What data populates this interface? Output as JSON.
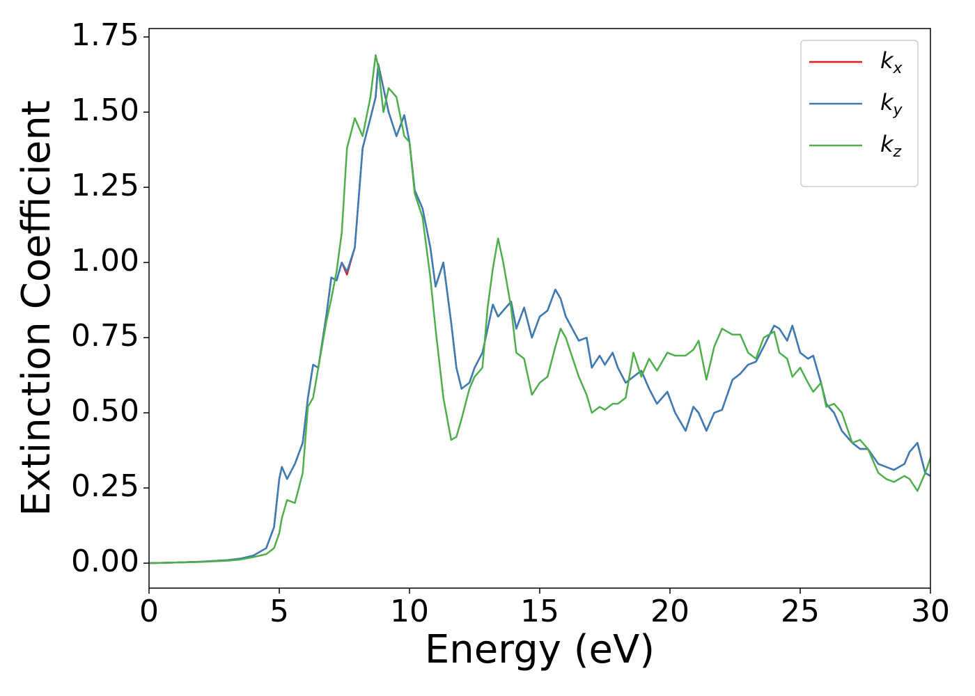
{
  "chart_data": {
    "type": "line",
    "xlabel": "Energy (eV)",
    "ylabel": "Extinction Coefficient",
    "x": [
      0,
      1,
      2,
      3,
      3.5,
      4,
      4.5,
      4.8,
      5,
      5.1,
      5.3,
      5.6,
      5.9,
      6.1,
      6.3,
      6.5,
      6.8,
      7,
      7.2,
      7.4,
      7.6,
      7.9,
      8.2,
      8.5,
      8.7,
      8.8,
      9,
      9.2,
      9.5,
      9.8,
      10,
      10.2,
      10.5,
      10.8,
      11,
      11.3,
      11.6,
      11.8,
      12,
      12.3,
      12.5,
      12.8,
      13,
      13.2,
      13.4,
      13.6,
      13.9,
      14.1,
      14.4,
      14.7,
      15,
      15.3,
      15.6,
      15.8,
      16,
      16.5,
      16.8,
      17,
      17.3,
      17.5,
      17.8,
      18,
      18.3,
      18.6,
      18.9,
      19.2,
      19.5,
      19.9,
      20.2,
      20.6,
      20.9,
      21.1,
      21.4,
      21.7,
      22,
      22.4,
      22.7,
      23,
      23.3,
      23.6,
      24,
      24.2,
      24.5,
      24.7,
      25,
      25.3,
      25.5,
      25.8,
      26,
      26.3,
      26.6,
      27,
      27.3,
      27.6,
      28,
      28.3,
      28.6,
      29,
      29.2,
      29.5,
      29.8,
      30
    ],
    "series": [
      {
        "name": "kx",
        "color": "#e41a1c",
        "values": [
          0,
          0.002,
          0.005,
          0.01,
          0.015,
          0.025,
          0.05,
          0.12,
          0.28,
          0.32,
          0.28,
          0.33,
          0.4,
          0.55,
          0.66,
          0.65,
          0.82,
          0.95,
          0.94,
          1.0,
          0.96,
          1.05,
          1.38,
          1.48,
          1.55,
          1.66,
          1.58,
          1.5,
          1.42,
          1.49,
          1.4,
          1.24,
          1.18,
          1.05,
          0.92,
          1.0,
          0.8,
          0.65,
          0.58,
          0.6,
          0.65,
          0.7,
          0.78,
          0.86,
          0.82,
          0.84,
          0.87,
          0.78,
          0.85,
          0.75,
          0.82,
          0.84,
          0.91,
          0.88,
          0.82,
          0.74,
          0.75,
          0.65,
          0.69,
          0.66,
          0.7,
          0.65,
          0.6,
          0.62,
          0.64,
          0.58,
          0.53,
          0.57,
          0.5,
          0.44,
          0.52,
          0.5,
          0.44,
          0.5,
          0.51,
          0.61,
          0.63,
          0.66,
          0.67,
          0.72,
          0.79,
          0.78,
          0.74,
          0.79,
          0.7,
          0.68,
          0.69,
          0.6,
          0.53,
          0.5,
          0.44,
          0.4,
          0.38,
          0.38,
          0.33,
          0.32,
          0.31,
          0.33,
          0.37,
          0.4,
          0.3,
          0.29
        ]
      },
      {
        "name": "ky",
        "color": "#377eb8",
        "values": [
          0,
          0.002,
          0.005,
          0.01,
          0.015,
          0.025,
          0.05,
          0.12,
          0.28,
          0.32,
          0.28,
          0.33,
          0.4,
          0.55,
          0.66,
          0.65,
          0.82,
          0.95,
          0.94,
          1.0,
          0.97,
          1.05,
          1.38,
          1.48,
          1.55,
          1.66,
          1.58,
          1.5,
          1.42,
          1.49,
          1.4,
          1.24,
          1.18,
          1.05,
          0.92,
          1.0,
          0.8,
          0.65,
          0.58,
          0.6,
          0.65,
          0.7,
          0.78,
          0.86,
          0.82,
          0.84,
          0.87,
          0.78,
          0.85,
          0.75,
          0.82,
          0.84,
          0.91,
          0.88,
          0.82,
          0.74,
          0.75,
          0.65,
          0.69,
          0.66,
          0.7,
          0.65,
          0.6,
          0.62,
          0.64,
          0.58,
          0.53,
          0.57,
          0.5,
          0.44,
          0.52,
          0.5,
          0.44,
          0.5,
          0.51,
          0.61,
          0.63,
          0.66,
          0.67,
          0.72,
          0.79,
          0.78,
          0.74,
          0.79,
          0.7,
          0.68,
          0.69,
          0.6,
          0.53,
          0.5,
          0.44,
          0.4,
          0.38,
          0.38,
          0.33,
          0.32,
          0.31,
          0.33,
          0.37,
          0.4,
          0.3,
          0.29
        ]
      },
      {
        "name": "kz",
        "color": "#4daf4a",
        "values": [
          0,
          0.002,
          0.004,
          0.008,
          0.012,
          0.02,
          0.03,
          0.05,
          0.1,
          0.15,
          0.21,
          0.2,
          0.3,
          0.52,
          0.55,
          0.65,
          0.8,
          0.88,
          0.97,
          1.1,
          1.38,
          1.48,
          1.42,
          1.55,
          1.69,
          1.65,
          1.5,
          1.58,
          1.55,
          1.42,
          1.4,
          1.23,
          1.15,
          0.95,
          0.78,
          0.55,
          0.41,
          0.42,
          0.48,
          0.58,
          0.62,
          0.65,
          0.85,
          0.98,
          1.08,
          1.0,
          0.85,
          0.7,
          0.68,
          0.56,
          0.6,
          0.62,
          0.72,
          0.78,
          0.75,
          0.62,
          0.56,
          0.5,
          0.52,
          0.51,
          0.53,
          0.53,
          0.55,
          0.7,
          0.62,
          0.68,
          0.64,
          0.7,
          0.69,
          0.69,
          0.71,
          0.74,
          0.61,
          0.72,
          0.78,
          0.76,
          0.76,
          0.7,
          0.68,
          0.75,
          0.77,
          0.7,
          0.68,
          0.62,
          0.65,
          0.6,
          0.57,
          0.6,
          0.52,
          0.53,
          0.5,
          0.4,
          0.41,
          0.38,
          0.3,
          0.28,
          0.27,
          0.29,
          0.28,
          0.24,
          0.3,
          0.35
        ]
      }
    ],
    "xlim": [
      0,
      30
    ],
    "xticks": [
      0,
      5,
      10,
      15,
      20,
      25,
      30
    ],
    "ylim": [
      -0.083,
      1.778
    ],
    "yticks": [
      {
        "value": 0,
        "label": "0.00"
      },
      0.25,
      {
        "value": 0.5,
        "label": "0.50"
      },
      0.75,
      {
        "value": 1,
        "label": "1.00"
      },
      1.25,
      {
        "value": 1.5,
        "label": "1.50"
      },
      1.75
    ],
    "legend": "upper right",
    "grid": false
  }
}
